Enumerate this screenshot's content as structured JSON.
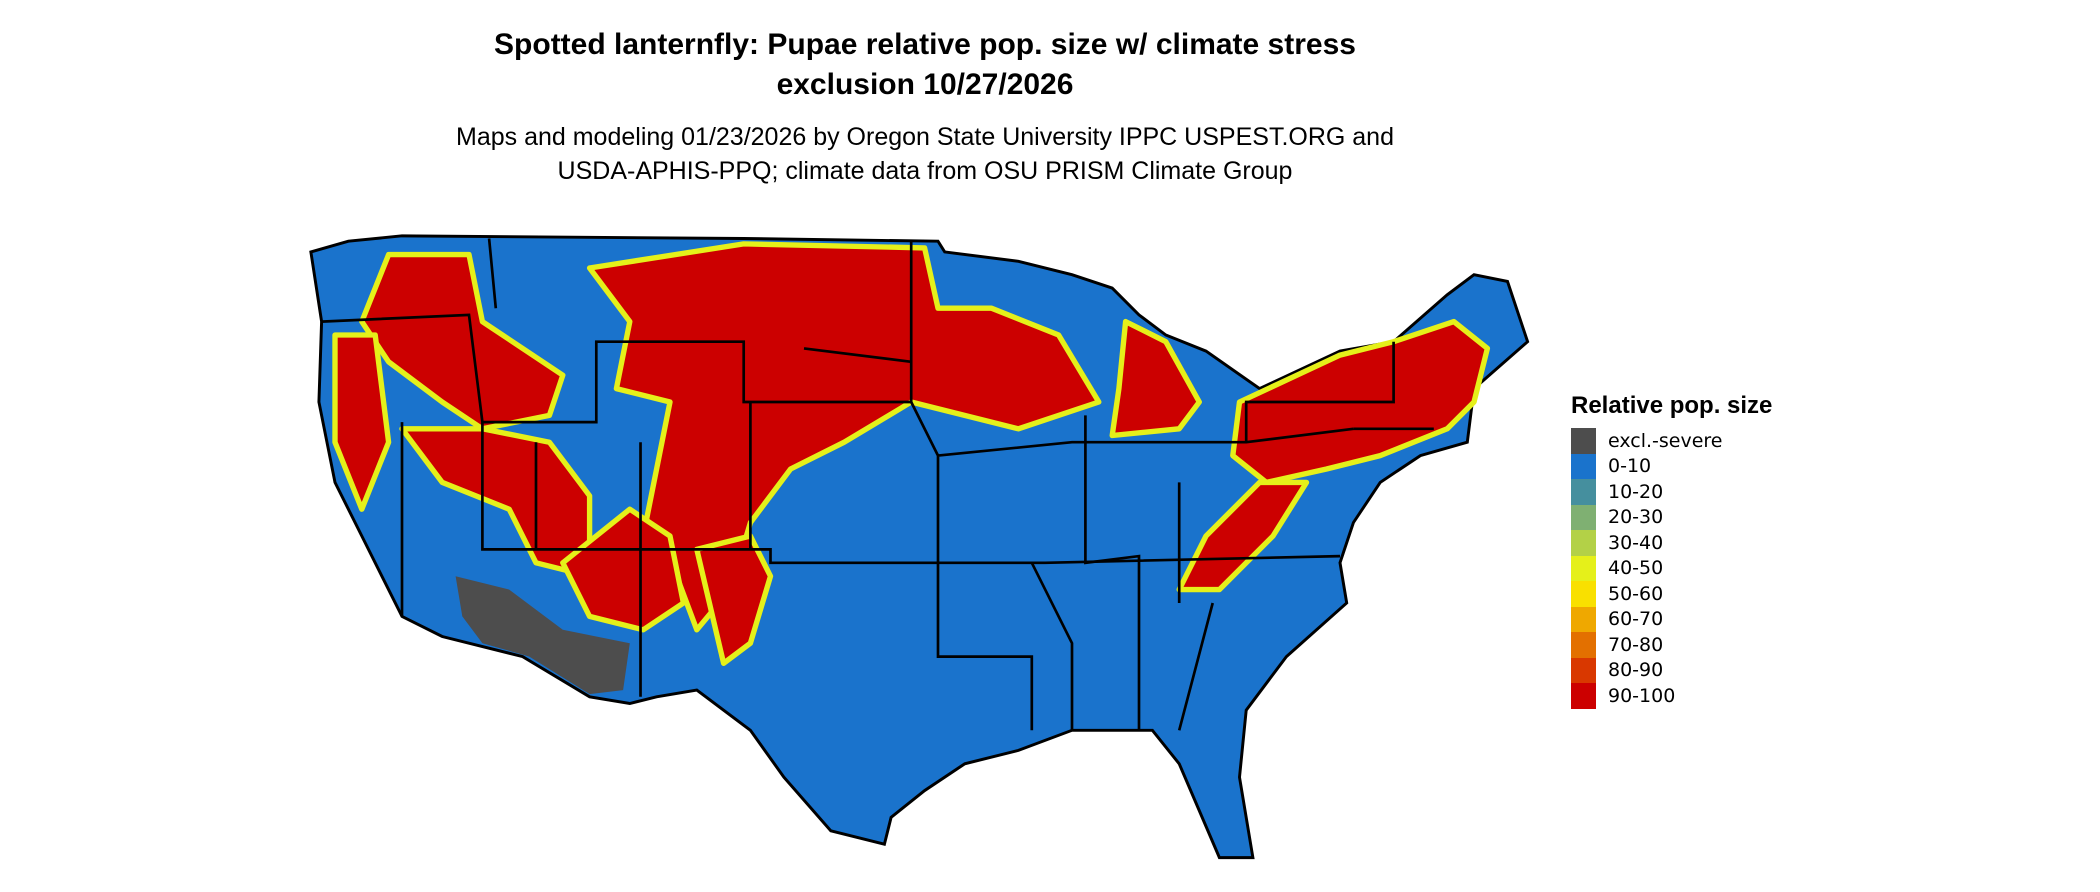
{
  "title": {
    "line1": "Spotted lanternfly: Pupae relative pop. size w/ climate stress",
    "line2": "exclusion 10/27/2026"
  },
  "subtitle": {
    "line1": "Maps and modeling 01/23/2026 by Oregon State University IPPC USPEST.ORG and",
    "line2": "USDA-APHIS-PPQ; climate data from OSU PRISM Climate Group"
  },
  "legend": {
    "title": "Relative pop. size",
    "items": [
      {
        "label": "excl.-severe",
        "color": "#4d4d4d"
      },
      {
        "label": "0-10",
        "color": "#1a73cc"
      },
      {
        "label": "10-20",
        "color": "#458f9e"
      },
      {
        "label": "20-30",
        "color": "#7fb072"
      },
      {
        "label": "30-40",
        "color": "#b3d147"
      },
      {
        "label": "40-50",
        "color": "#e5f01a"
      },
      {
        "label": "50-60",
        "color": "#f9e000"
      },
      {
        "label": "60-70",
        "color": "#efa800"
      },
      {
        "label": "70-80",
        "color": "#e37000"
      },
      {
        "label": "80-90",
        "color": "#d93800"
      },
      {
        "label": "90-100",
        "color": "#cc0000"
      }
    ]
  }
}
